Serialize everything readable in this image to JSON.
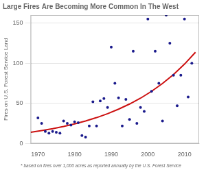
{
  "chart_data": {
    "type": "scatter",
    "title": "Large Fires Are Becoming More Common In The West",
    "ylabel": "Fires on U.S. Forest Service Land",
    "footnote": "* based on fires over 1,000 acres as reported annually by the U.S. Forest Service",
    "xlim": [
      1968,
      2014
    ],
    "ylim": [
      0,
      160
    ],
    "xticks": [
      1970,
      1980,
      1990,
      2000,
      2010
    ],
    "yticks": [
      0,
      50,
      100,
      150
    ],
    "grid": "y",
    "series": [
      {
        "type": "scatter",
        "color": "#1a1a8c",
        "x": [
          1970,
          1971,
          1972,
          1973,
          1974,
          1975,
          1976,
          1977,
          1978,
          1979,
          1980,
          1981,
          1982,
          1983,
          1984,
          1985,
          1986,
          1987,
          1988,
          1989,
          1990,
          1991,
          1992,
          1993,
          1994,
          1995,
          1996,
          1997,
          1998,
          1999,
          2000,
          2001,
          2002,
          2003,
          2004,
          2005,
          2006,
          2007,
          2008,
          2009,
          2010,
          2011,
          2012
        ],
        "values": [
          32,
          25,
          15,
          13,
          15,
          14,
          13,
          28,
          25,
          23,
          27,
          26,
          10,
          8,
          22,
          52,
          22,
          53,
          56,
          45,
          120,
          75,
          57,
          22,
          55,
          30,
          115,
          25,
          45,
          40,
          155,
          65,
          115,
          75,
          28,
          160,
          125,
          85,
          47,
          85,
          155,
          58,
          100
        ]
      },
      {
        "type": "line",
        "color": "#cc1111",
        "x": [
          1968,
          1971,
          1974,
          1977,
          1980,
          1983,
          1986,
          1989,
          1992,
          1995,
          1998,
          2001,
          2004,
          2007,
          2010,
          2013
        ],
        "values": [
          14.0,
          16.1,
          18.5,
          21.3,
          24.5,
          28.1,
          32.3,
          37.2,
          42.8,
          49.2,
          56.5,
          65.0,
          74.8,
          86.0,
          98.9,
          113.7
        ]
      }
    ]
  }
}
